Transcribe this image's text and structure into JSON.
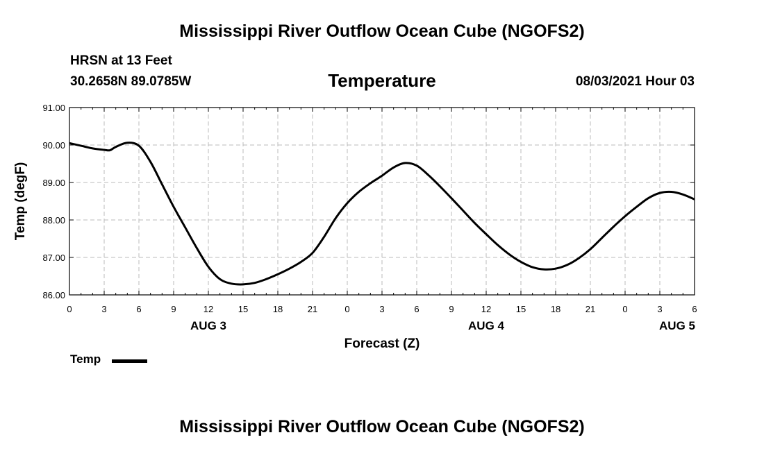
{
  "header": {
    "title": "Mississippi River Outflow Ocean Cube (NGOFS2)",
    "station": "HRSN at 13 Feet",
    "coords": "30.2658N  89.0785W",
    "variable": "Temperature",
    "datetime": "08/03/2021 Hour 03"
  },
  "footer": {
    "title": "Mississippi River Outflow Ocean Cube (NGOFS2)"
  },
  "legend": {
    "label": "Temp"
  },
  "chart_data": {
    "type": "line",
    "title": "Temperature",
    "xlabel": "Forecast (Z)",
    "ylabel": "Temp (degF)",
    "xlim": [
      0,
      54
    ],
    "ylim": [
      86.0,
      91.0
    ],
    "grid": true,
    "legend_position": "bottom-left",
    "x_ticks": [
      0,
      3,
      6,
      9,
      12,
      15,
      18,
      21,
      24,
      27,
      30,
      33,
      36,
      39,
      42,
      45,
      48,
      51,
      54
    ],
    "x_tick_labels": [
      "0",
      "3",
      "6",
      "9",
      "12",
      "15",
      "18",
      "21",
      "0",
      "3",
      "6",
      "9",
      "12",
      "15",
      "18",
      "21",
      "0",
      "3",
      "6"
    ],
    "y_ticks": [
      86.0,
      87.0,
      88.0,
      89.0,
      90.0,
      91.0
    ],
    "y_tick_labels": [
      "86.00",
      "87.00",
      "88.00",
      "89.00",
      "90.00",
      "91.00"
    ],
    "day_labels": [
      {
        "x": 12,
        "label": "AUG 3"
      },
      {
        "x": 36,
        "label": "AUG 4"
      },
      {
        "x": 52.5,
        "label": "AUG 5"
      }
    ],
    "series": [
      {
        "name": "Temp",
        "color": "#000000",
        "x": [
          0,
          1,
          2,
          3,
          3.5,
          4,
          5,
          6,
          7,
          8,
          9,
          10,
          11,
          12,
          13,
          14,
          15,
          16,
          17,
          18,
          19,
          20,
          21,
          22,
          23,
          24,
          25,
          26,
          27,
          28,
          29,
          30,
          31,
          32,
          33,
          34,
          35,
          36,
          37,
          38,
          39,
          40,
          41,
          42,
          43,
          44,
          45,
          46,
          47,
          48,
          49,
          50,
          51,
          52,
          53,
          54
        ],
        "values": [
          90.05,
          89.98,
          89.91,
          89.87,
          89.86,
          89.95,
          90.06,
          89.98,
          89.55,
          88.95,
          88.35,
          87.8,
          87.25,
          86.75,
          86.42,
          86.3,
          86.28,
          86.32,
          86.42,
          86.55,
          86.7,
          86.88,
          87.12,
          87.55,
          88.05,
          88.45,
          88.75,
          88.98,
          89.18,
          89.4,
          89.52,
          89.45,
          89.2,
          88.9,
          88.58,
          88.25,
          87.92,
          87.62,
          87.33,
          87.08,
          86.88,
          86.74,
          86.68,
          86.7,
          86.8,
          86.98,
          87.22,
          87.52,
          87.82,
          88.1,
          88.35,
          88.58,
          88.72,
          88.75,
          88.68,
          88.55
        ]
      }
    ]
  }
}
